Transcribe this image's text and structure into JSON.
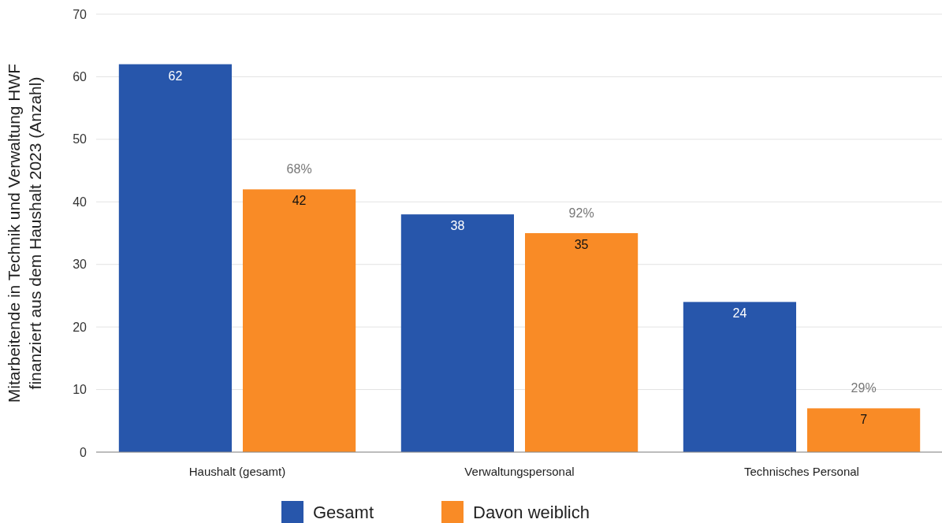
{
  "chart_data": {
    "type": "bar",
    "ylabel": "Mitarbeitende in Technik und Verwaltung HWF\nfinanziert aus dem Haushalt 2023 (Anzahl)",
    "categories": [
      "Haushalt (gesamt)",
      "Verwaltungspersonal",
      "Technisches Personal"
    ],
    "series": [
      {
        "name": "Gesamt",
        "color": "#2756ab",
        "values": [
          62,
          38,
          24
        ]
      },
      {
        "name": "Davon weiblich",
        "color": "#f98b26",
        "values": [
          42,
          35,
          7
        ]
      }
    ],
    "ylim": [
      0,
      70
    ],
    "yticks": [
      0,
      10,
      20,
      30,
      40,
      50,
      60,
      70
    ],
    "grid": "y",
    "legend": "bottom",
    "data_labels": true,
    "annotations": [
      "68%",
      "92%",
      "29%"
    ]
  }
}
